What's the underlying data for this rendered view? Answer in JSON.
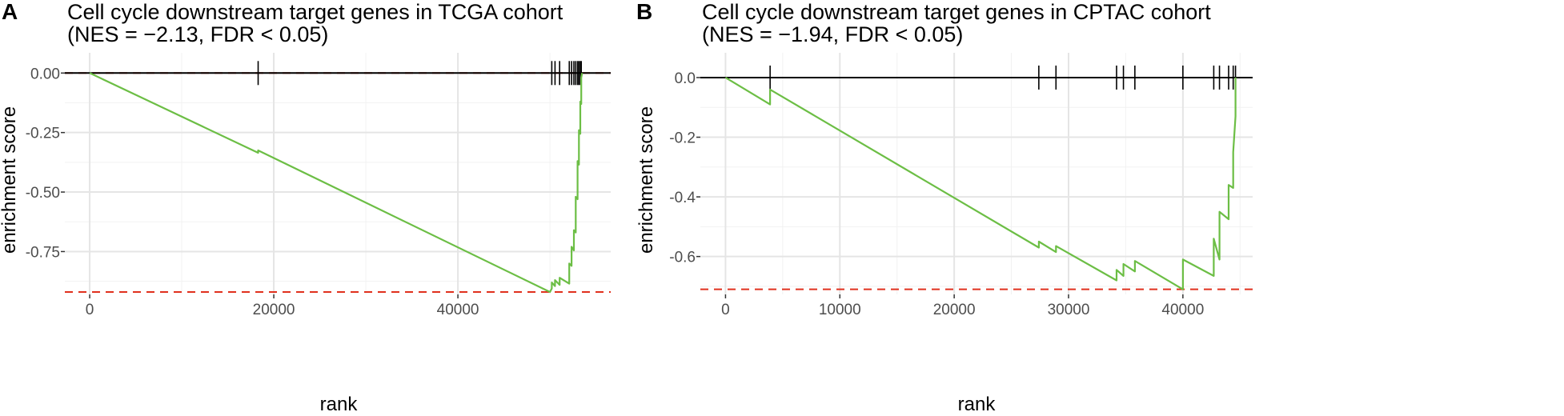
{
  "colors": {
    "background": "#ffffff",
    "grid": "#e5e5e5",
    "curve": "#6cbe45",
    "hits": "#000000",
    "dashed": "#e0301e",
    "text": "#000000",
    "tick_label": "#4d4d4d"
  },
  "chart_data": [
    {
      "type": "line",
      "panel_label": "A",
      "title_line1": "Cell cycle downstream target genes in TCGA cohort",
      "title_line2": "(NES = −2.13, FDR < 0.05)",
      "xlabel": "rank",
      "ylabel": "enrichment score",
      "xlim": [
        -2700,
        56600
      ],
      "ylim": [
        -0.93,
        0.085
      ],
      "x_ticks": [
        0,
        20000,
        40000
      ],
      "x_tick_labels": [
        "0",
        "20000",
        "40000"
      ],
      "y_ticks": [
        0,
        -0.25,
        -0.5,
        -0.75
      ],
      "y_tick_labels": [
        "0.00",
        "-0.25",
        "-0.50",
        "-0.75"
      ],
      "min_es": -0.92,
      "hits": [
        18300,
        50200,
        50550,
        51050,
        52100,
        52350,
        52600,
        52800,
        53000,
        53150,
        53300,
        53400
      ],
      "curve": {
        "x": [
          0,
          18300,
          18300,
          50000,
          50200,
          50200,
          50550,
          50550,
          51050,
          51050,
          52100,
          52100,
          52350,
          52350,
          52600,
          52600,
          52800,
          52800,
          53000,
          53000,
          53150,
          53150,
          53300,
          53300,
          53400,
          53400,
          53500
        ],
        "y": [
          0,
          -0.335,
          -0.325,
          -0.92,
          -0.905,
          -0.88,
          -0.895,
          -0.87,
          -0.89,
          -0.86,
          -0.885,
          -0.8,
          -0.81,
          -0.73,
          -0.745,
          -0.66,
          -0.67,
          -0.52,
          -0.53,
          -0.37,
          -0.385,
          -0.24,
          -0.255,
          -0.12,
          -0.13,
          -0.02,
          0
        ]
      }
    },
    {
      "type": "line",
      "panel_label": "B",
      "title_line1": "Cell cycle downstream target genes in CPTAC cohort",
      "title_line2": "(NES = −1.94, FDR < 0.05)",
      "xlabel": "rank",
      "ylabel": "enrichment score",
      "xlim": [
        -2200,
        46100
      ],
      "ylim": [
        -0.727,
        0.083
      ],
      "x_ticks": [
        0,
        10000,
        20000,
        30000,
        40000
      ],
      "x_tick_labels": [
        "0",
        "10000",
        "20000",
        "30000",
        "40000"
      ],
      "y_ticks": [
        0,
        -0.2,
        -0.4,
        -0.6
      ],
      "y_tick_labels": [
        "0.0",
        "-0.2",
        "-0.4",
        "-0.6"
      ],
      "min_es": -0.71,
      "hits": [
        3900,
        27400,
        28900,
        34200,
        34800,
        35800,
        40000,
        42700,
        43200,
        44000,
        44400,
        44600
      ],
      "curve": {
        "x": [
          0,
          3900,
          3900,
          27400,
          27400,
          28900,
          28900,
          34200,
          34200,
          34800,
          34800,
          35800,
          35800,
          40000,
          40000,
          42700,
          42700,
          43200,
          43200,
          44000,
          44000,
          44400,
          44400,
          44600,
          44600
        ],
        "y": [
          0,
          -0.09,
          -0.04,
          -0.57,
          -0.55,
          -0.585,
          -0.565,
          -0.68,
          -0.645,
          -0.665,
          -0.625,
          -0.65,
          -0.615,
          -0.71,
          -0.61,
          -0.665,
          -0.54,
          -0.61,
          -0.45,
          -0.475,
          -0.36,
          -0.37,
          -0.25,
          -0.13,
          0
        ]
      }
    }
  ]
}
